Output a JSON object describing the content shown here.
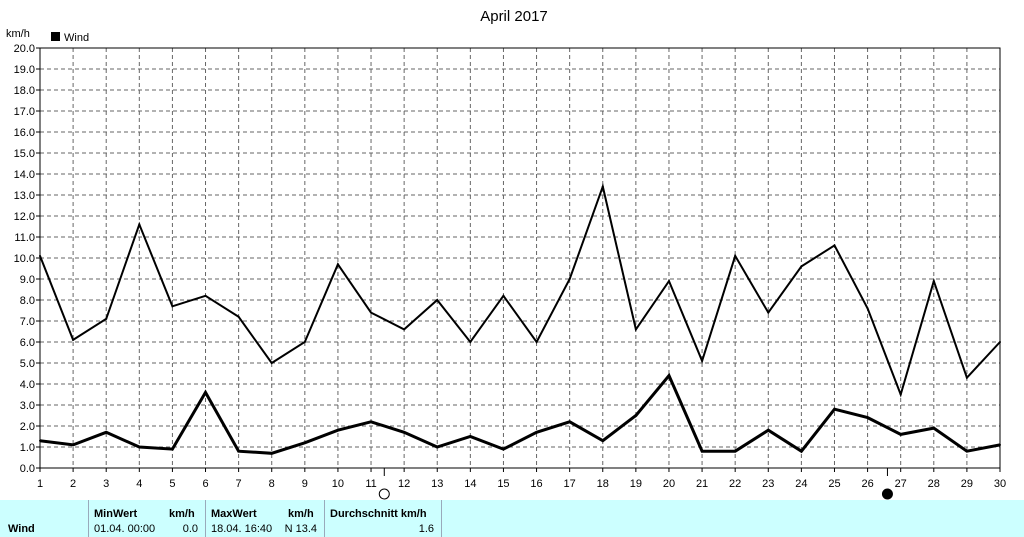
{
  "chart_data": {
    "type": "line",
    "title": "April 2017",
    "ylabel": "km/h",
    "legend": {
      "label": "Wind",
      "color": "#000000",
      "placement": "top-left"
    },
    "ylim": [
      0,
      20
    ],
    "ytick_step": 1,
    "yticks": [
      "0.0",
      "1.0",
      "2.0",
      "3.0",
      "4.0",
      "5.0",
      "6.0",
      "7.0",
      "8.0",
      "9.0",
      "10.0",
      "11.0",
      "12.0",
      "13.0",
      "14.0",
      "15.0",
      "16.0",
      "17.0",
      "18.0",
      "19.0",
      "20.0"
    ],
    "xlim": [
      1,
      30
    ],
    "x": [
      1,
      2,
      3,
      4,
      5,
      6,
      7,
      8,
      9,
      10,
      11,
      12,
      13,
      14,
      15,
      16,
      17,
      18,
      19,
      20,
      21,
      22,
      23,
      24,
      25,
      26,
      27,
      28,
      29,
      30
    ],
    "grid": true,
    "series": [
      {
        "values": [
          10.1,
          6.1,
          7.1,
          11.6,
          7.7,
          8.2,
          7.2,
          5.0,
          6.0,
          9.7,
          7.4,
          6.6,
          8.0,
          6.0,
          8.2,
          6.0,
          9.0,
          13.4,
          6.6,
          8.9,
          5.1,
          10.1,
          7.4,
          9.6,
          10.6,
          7.6,
          3.5,
          8.9,
          4.3,
          6.0
        ],
        "color": "#000000"
      },
      {
        "values": [
          1.3,
          1.1,
          1.7,
          1.0,
          0.9,
          3.6,
          0.8,
          0.7,
          1.2,
          1.8,
          2.2,
          1.7,
          1.0,
          1.5,
          0.9,
          1.7,
          2.2,
          1.3,
          2.5,
          4.4,
          0.8,
          0.8,
          1.8,
          0.8,
          2.8,
          2.4,
          1.6,
          1.9,
          0.8,
          1.1
        ],
        "color": "#000000"
      }
    ],
    "moon_phases": [
      {
        "day": 11.4,
        "phase": "full-moon"
      },
      {
        "day": 26.6,
        "phase": "new-moon"
      }
    ]
  },
  "stats": {
    "row_label": "Wind",
    "min_header": "MinWert",
    "min_unit": "km/h",
    "min_time": "01.04.  00:00",
    "min_value": "0.0",
    "max_header": "MaxWert",
    "max_unit": "km/h",
    "max_time": "18.04.  16:40",
    "max_value": "N 13.4",
    "avg_header": "Durchschnitt km/h",
    "avg_value": "1.6"
  }
}
